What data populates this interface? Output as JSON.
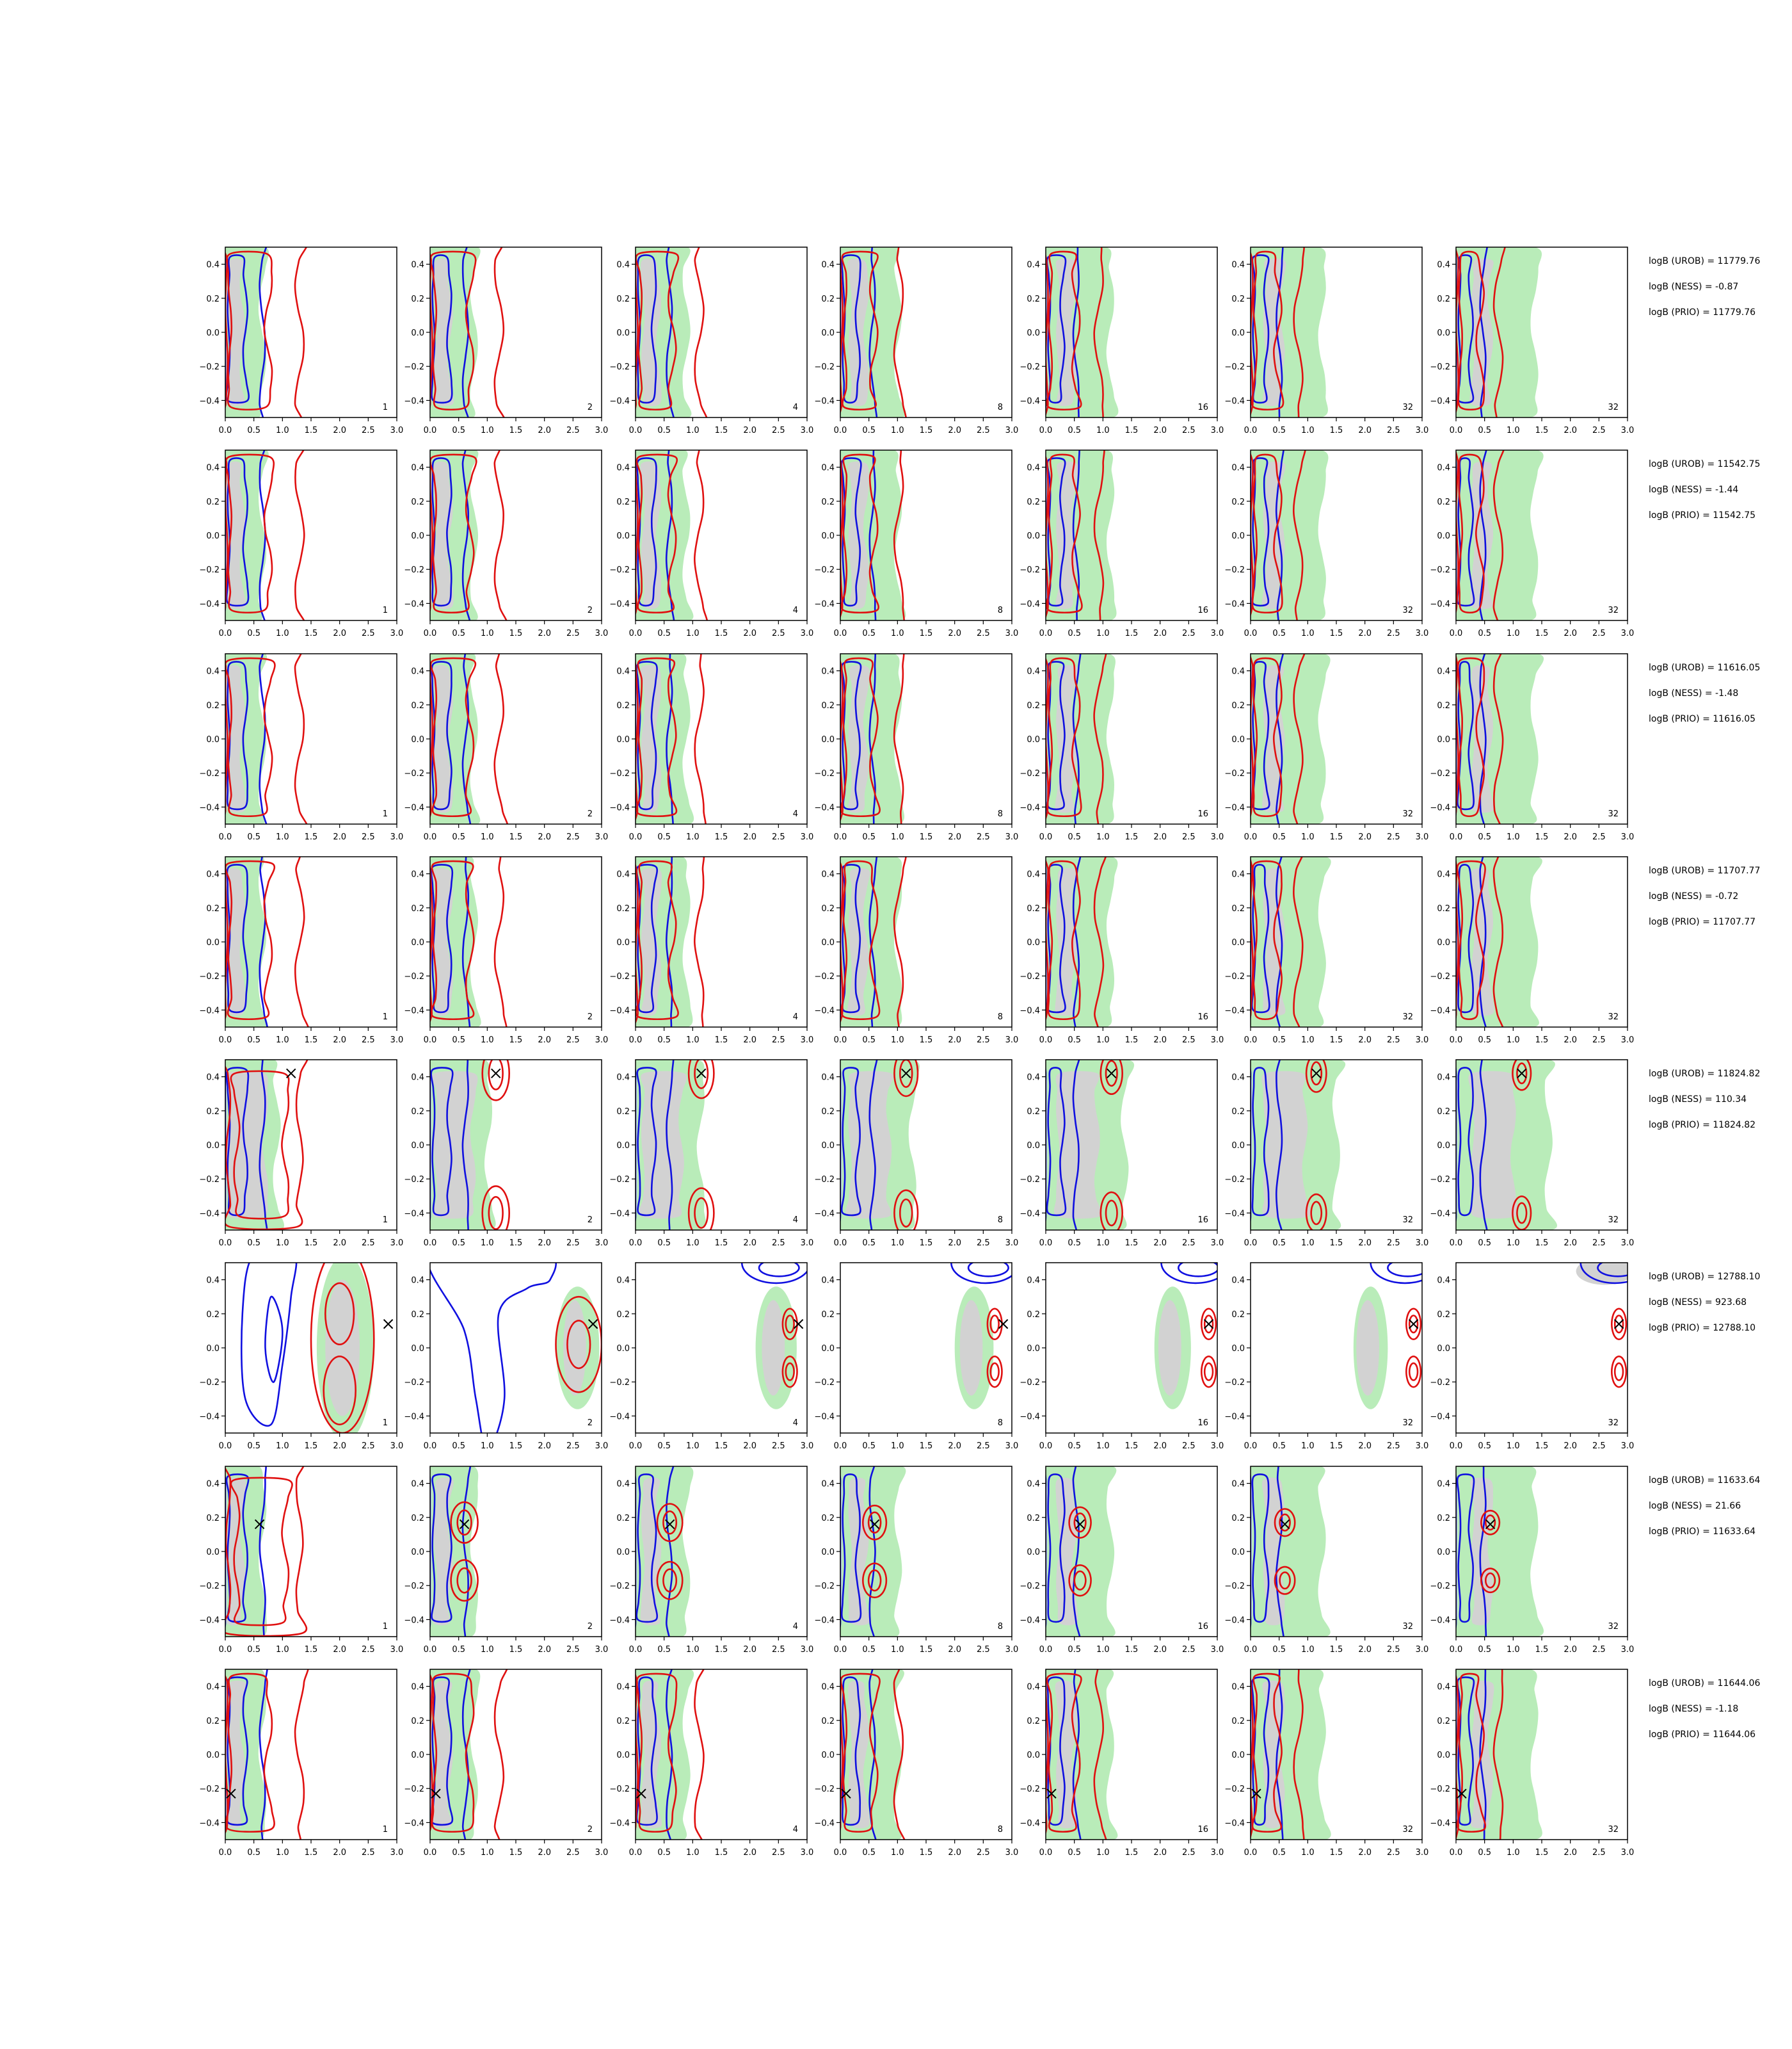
{
  "figure": {
    "x_ticks": [
      "0.0",
      "0.5",
      "1.0",
      "1.5",
      "2.0",
      "2.5",
      "3.0"
    ],
    "y_ticks": [
      "0.4",
      "0.2",
      "0.0",
      "−0.2",
      "−0.4"
    ],
    "panel_labels": [
      "1",
      "2",
      "4",
      "8",
      "16",
      "32",
      "32"
    ],
    "colors": {
      "blue_contour": "#1010e0",
      "red_contour": "#e01010",
      "green_fill": "#b9ecb9",
      "gray_fill": "#d2d2d2",
      "marker": "#000000"
    }
  },
  "rows": [
    {
      "annotations": [
        "logB (UROB) = 11779.76",
        "logB (NESS) = -0.87",
        "logB (PRIO) = 11779.76"
      ]
    },
    {
      "annotations": [
        "logB (UROB) = 11542.75",
        "logB (NESS) = -1.44",
        "logB (PRIO) = 11542.75"
      ]
    },
    {
      "annotations": [
        "logB (UROB) = 11616.05",
        "logB (NESS) = -1.48",
        "logB (PRIO) = 11616.05"
      ]
    },
    {
      "annotations": [
        "logB (UROB) = 11707.77",
        "logB (NESS) = -0.72",
        "logB (PRIO) = 11707.77"
      ]
    },
    {
      "annotations": [
        "logB (UROB) = 11824.82",
        "logB (NESS) = 110.34",
        "logB (PRIO) = 11824.82"
      ]
    },
    {
      "annotations": [
        "logB (UROB) = 12788.10",
        "logB (NESS) = 923.68",
        "logB (PRIO) = 12788.10"
      ]
    },
    {
      "annotations": [
        "logB (UROB) = 11633.64",
        "logB (NESS) = 21.66",
        "logB (PRIO) = 11633.64"
      ]
    },
    {
      "annotations": [
        "logB (UROB) = 11644.06",
        "logB (NESS) = -1.18",
        "logB (PRIO) = 11644.06"
      ]
    }
  ],
  "chart_data": {
    "type": "contour",
    "grid": "8 rows x 7 columns of panels",
    "xlim": [
      0,
      3.0
    ],
    "ylim": [
      -0.5,
      0.5
    ],
    "markers": [
      {
        "row": 5,
        "x": 1.15,
        "y": 0.42
      },
      {
        "row": 6,
        "x": 2.85,
        "y": 0.14
      },
      {
        "row": 7,
        "x": 0.6,
        "y": 0.16
      },
      {
        "row": 8,
        "x": 0.1,
        "y": -0.23
      }
    ]
  }
}
